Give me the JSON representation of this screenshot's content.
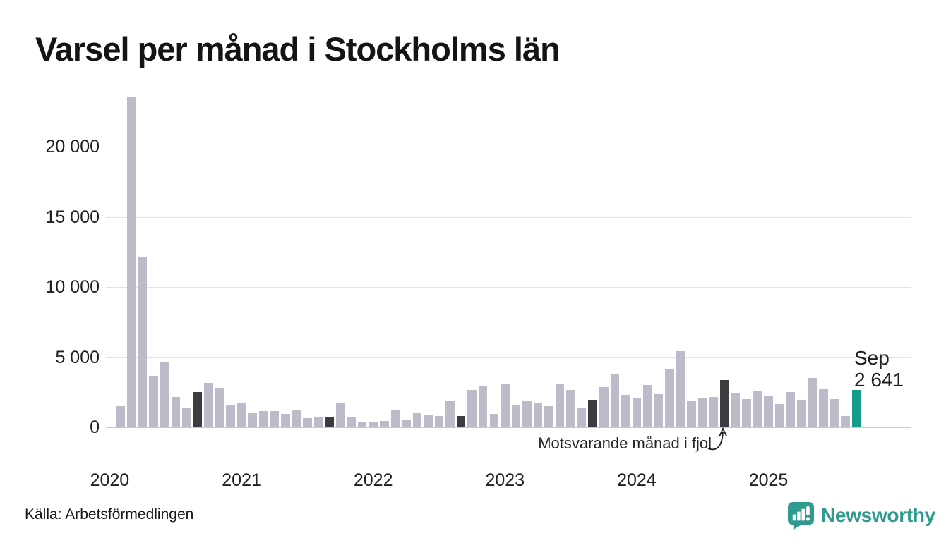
{
  "chart_data": {
    "type": "bar",
    "title": "Varsel per månad i Stockholms län",
    "xlabel": "",
    "ylabel": "",
    "ylim": [
      0,
      24000
    ],
    "grid": true,
    "y_ticks": [
      0,
      5000,
      10000,
      15000,
      20000
    ],
    "y_tick_labels": [
      "0",
      "5 000",
      "10 000",
      "15 000",
      "20 000"
    ],
    "x_tick_labels": [
      "2020",
      "2021",
      "2022",
      "2023",
      "2024",
      "2025"
    ],
    "months": [
      "2020-02",
      "2020-03",
      "2020-04",
      "2020-05",
      "2020-06",
      "2020-07",
      "2020-08",
      "2020-09",
      "2020-10",
      "2020-11",
      "2020-12",
      "2021-01",
      "2021-02",
      "2021-03",
      "2021-04",
      "2021-05",
      "2021-06",
      "2021-07",
      "2021-08",
      "2021-09",
      "2021-10",
      "2021-11",
      "2021-12",
      "2022-01",
      "2022-02",
      "2022-03",
      "2022-04",
      "2022-05",
      "2022-06",
      "2022-07",
      "2022-08",
      "2022-09",
      "2022-10",
      "2022-11",
      "2022-12",
      "2023-01",
      "2023-02",
      "2023-03",
      "2023-04",
      "2023-05",
      "2023-06",
      "2023-07",
      "2023-08",
      "2023-09",
      "2023-10",
      "2023-11",
      "2023-12",
      "2024-01",
      "2024-02",
      "2024-03",
      "2024-04",
      "2024-05",
      "2024-06",
      "2024-07",
      "2024-08",
      "2024-09",
      "2024-10",
      "2024-11",
      "2024-12",
      "2025-01",
      "2025-02",
      "2025-03",
      "2025-04",
      "2025-05",
      "2025-06",
      "2025-07",
      "2025-08",
      "2025-09"
    ],
    "values": [
      1500,
      23500,
      12150,
      3650,
      4700,
      2150,
      1350,
      2500,
      3150,
      2800,
      1550,
      1750,
      1000,
      1150,
      1150,
      950,
      1200,
      650,
      700,
      700,
      1750,
      750,
      350,
      400,
      450,
      1250,
      500,
      1000,
      900,
      800,
      1850,
      800,
      2650,
      2900,
      950,
      3100,
      1600,
      1900,
      1750,
      1500,
      3050,
      2650,
      1400,
      1950,
      2850,
      3800,
      2300,
      2100,
      3000,
      2350,
      4100,
      5450,
      1850,
      2100,
      2150,
      3350,
      2400,
      2000,
      2600,
      2200,
      1650,
      2500,
      1950,
      3500,
      2750,
      2000,
      800,
      2641
    ],
    "dark_months": [
      "2020-09",
      "2021-09",
      "2022-09",
      "2023-09",
      "2024-09"
    ],
    "highlight_month": "2025-09",
    "annotation": "Motsvarande månad i fjol",
    "last_point_label": [
      "Sep",
      "2 641"
    ],
    "legend_position": "none",
    "colors": {
      "bar": "#bdbbc9",
      "bar_dark": "#3b3b40",
      "bar_highlight": "#189a8a",
      "grid": "#e3e2e8",
      "brand_teal": "#2f9a8e"
    }
  },
  "footer": {
    "source": "Källa: Arbetsförmedlingen",
    "brand": "Newsworthy"
  }
}
